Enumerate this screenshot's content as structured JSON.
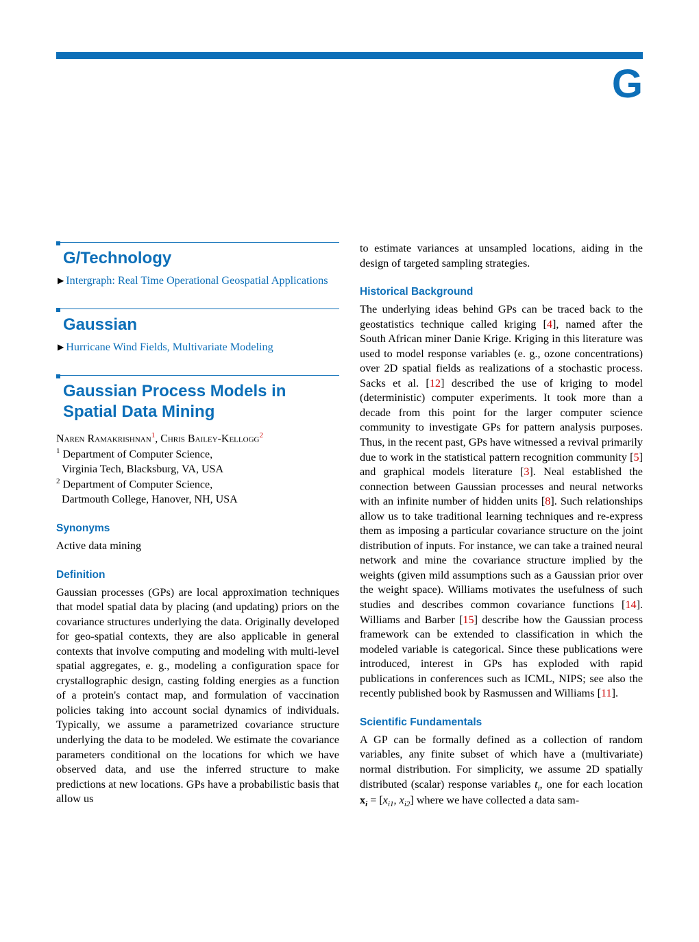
{
  "chapter_letter": "G",
  "colors": {
    "accent": "#0d6fb8",
    "cite": "#c00000",
    "text": "#000000",
    "background": "#ffffff"
  },
  "typography": {
    "body_font": "Times New Roman",
    "heading_font": "Arial",
    "body_size_pt": 10,
    "entry_title_size_pt": 15,
    "sec_head_size_pt": 9.5
  },
  "left": {
    "entry1": {
      "title": "G/Technology",
      "xref": "Intergraph: Real Time Operational Geospatial Applications"
    },
    "entry2": {
      "title": "Gaussian",
      "xref": "Hurricane Wind Fields, Multivariate Modeling"
    },
    "entry3": {
      "title": "Gaussian Process Models in Spatial Data Mining",
      "author1_first": "Naren",
      "author1_last": "Ramakrishnan",
      "author1_sup": "1",
      "author2_first": "Chris",
      "author2_last": "Bailey-Kellogg",
      "author2_sup": "2",
      "affil1_num": "1",
      "affil1_line1": "Department of Computer Science,",
      "affil1_line2": "Virginia Tech, Blacksburg, VA, USA",
      "affil2_num": "2",
      "affil2_line1": "Department of Computer Science,",
      "affil2_line2": "Dartmouth College, Hanover, NH, USA",
      "synonyms_head": "Synonyms",
      "synonyms_body": "Active data mining",
      "definition_head": "Definition",
      "definition_body": "Gaussian processes (GPs) are local approximation techniques that model spatial data by placing (and updating) priors on the covariance structures underlying the data. Originally developed for geo-spatial contexts, they are also applicable in general contexts that involve computing and modeling with multi-level spatial aggregates, e. g., modeling a configuration space for crystallographic design, casting folding energies as a function of a protein's contact map, and formulation of vaccination policies taking into account social dynamics of individuals. Typically, we assume a parametrized covariance structure underlying the data to be modeled. We estimate the covariance parameters conditional on the locations for which we have observed data, and use the inferred structure to make predictions at new locations. GPs have a probabilistic basis that allow us"
    }
  },
  "right": {
    "cont": "to estimate variances at unsampled locations, aiding in the design of targeted sampling strategies.",
    "hist_head": "Historical Background",
    "hist_p1a": "The underlying ideas behind GPs can be traced back to the geostatistics technique called kriging [",
    "hist_c1": "4",
    "hist_p1b": "], named after the South African miner Danie Krige. Kriging in this literature was used to model response variables (e. g., ozone concentrations) over 2D spatial fields as realizations of a stochastic process. Sacks et al. [",
    "hist_c2": "12",
    "hist_p1c": "] described the use of kriging to model (deterministic) computer experiments. It took more than a decade from this point for the larger computer science community to investigate GPs for pattern analysis purposes. Thus, in the recent past, GPs have witnessed a revival primarily due to work in the statistical pattern recognition community [",
    "hist_c3": "5",
    "hist_p1d": "] and graphical models literature [",
    "hist_c4": "3",
    "hist_p1e": "]. Neal established the connection between Gaussian processes and neural networks with an infinite number of hidden units [",
    "hist_c5": "8",
    "hist_p1f": "]. Such relationships allow us to take traditional learning techniques and re-express them as imposing a particular covariance structure on the joint distribution of inputs. For instance, we can take a trained neural network and mine the covariance structure implied by the weights (given mild assumptions such as a Gaussian prior over the weight space). Williams motivates the usefulness of such studies and describes common covariance functions [",
    "hist_c6": "14",
    "hist_p1g": "]. Williams and Barber [",
    "hist_c7": "15",
    "hist_p1h": "] describe how the Gaussian process framework can be extended to classification in which the modeled variable is categorical. Since these publications were introduced, interest in GPs has exploded with rapid publications in conferences such as ICML, NIPS; see also the recently published book by Rasmussen and Williams [",
    "hist_c8": "11",
    "hist_p1i": "].",
    "sci_head": "Scientific Fundamentals",
    "sci_p1a": "A GP can be formally defined as a collection of random variables, any finite subset of which have a (multivariate) normal distribution. For simplicity, we assume 2D spatially distributed (scalar) response variables ",
    "sci_var_t": "t",
    "sci_sub_i": "i",
    "sci_p1b": ", one for each location ",
    "sci_var_x": "x",
    "sci_sub_ib": "i",
    "sci_eq_mid": " = [",
    "sci_var_x1": "x",
    "sci_sub_i1": "i1",
    "sci_comma": ", ",
    "sci_var_x2": "x",
    "sci_sub_i2": "i2",
    "sci_p1c": "] where we have collected a data sam-"
  }
}
